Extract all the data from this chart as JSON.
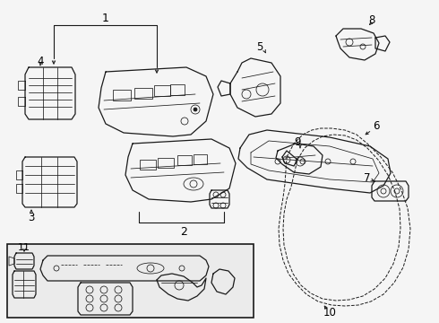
{
  "background_color": "#f5f5f5",
  "line_color": "#1a1a1a",
  "fig_width": 4.9,
  "fig_height": 3.6,
  "dpi": 100,
  "inset_bg": "#ebebeb",
  "label_fs": 8.5
}
